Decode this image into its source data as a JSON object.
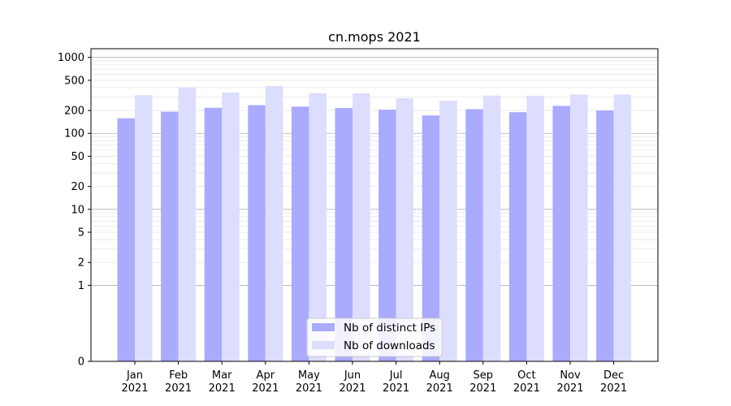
{
  "chart_data": {
    "type": "bar",
    "title": "cn.mops 2021",
    "xlabel": "",
    "ylabel": "",
    "y_scale": "symlog",
    "ylim": [
      0,
      1300
    ],
    "grid": "horizontal major and minor",
    "legend_position": "bottom-center",
    "categories": [
      [
        "Jan",
        "2021"
      ],
      [
        "Feb",
        "2021"
      ],
      [
        "Mar",
        "2021"
      ],
      [
        "Apr",
        "2021"
      ],
      [
        "May",
        "2021"
      ],
      [
        "Jun",
        "2021"
      ],
      [
        "Jul",
        "2021"
      ],
      [
        "Aug",
        "2021"
      ],
      [
        "Sep",
        "2021"
      ],
      [
        "Oct",
        "2021"
      ],
      [
        "Nov",
        "2021"
      ],
      [
        "Dec",
        "2021"
      ]
    ],
    "y_ticks": [
      {
        "value": 0,
        "label": "0"
      },
      {
        "value": 1,
        "label": "1"
      },
      {
        "value": 2,
        "label": "2"
      },
      {
        "value": 5,
        "label": "5"
      },
      {
        "value": 10,
        "label": "10"
      },
      {
        "value": 20,
        "label": "20"
      },
      {
        "value": 50,
        "label": "50"
      },
      {
        "value": 100,
        "label": "100"
      },
      {
        "value": 200,
        "label": "200"
      },
      {
        "value": 500,
        "label": "500"
      },
      {
        "value": 1000,
        "label": "1000"
      }
    ],
    "series": [
      {
        "name": "Nb of distinct IPs",
        "color": "#aaaaff",
        "values": [
          158,
          193,
          217,
          235,
          225,
          216,
          205,
          172,
          208,
          190,
          230,
          200
        ]
      },
      {
        "name": "Nb of downloads",
        "color": "#ddddff",
        "values": [
          318,
          405,
          345,
          420,
          338,
          338,
          290,
          270,
          315,
          313,
          325,
          325
        ]
      }
    ]
  }
}
